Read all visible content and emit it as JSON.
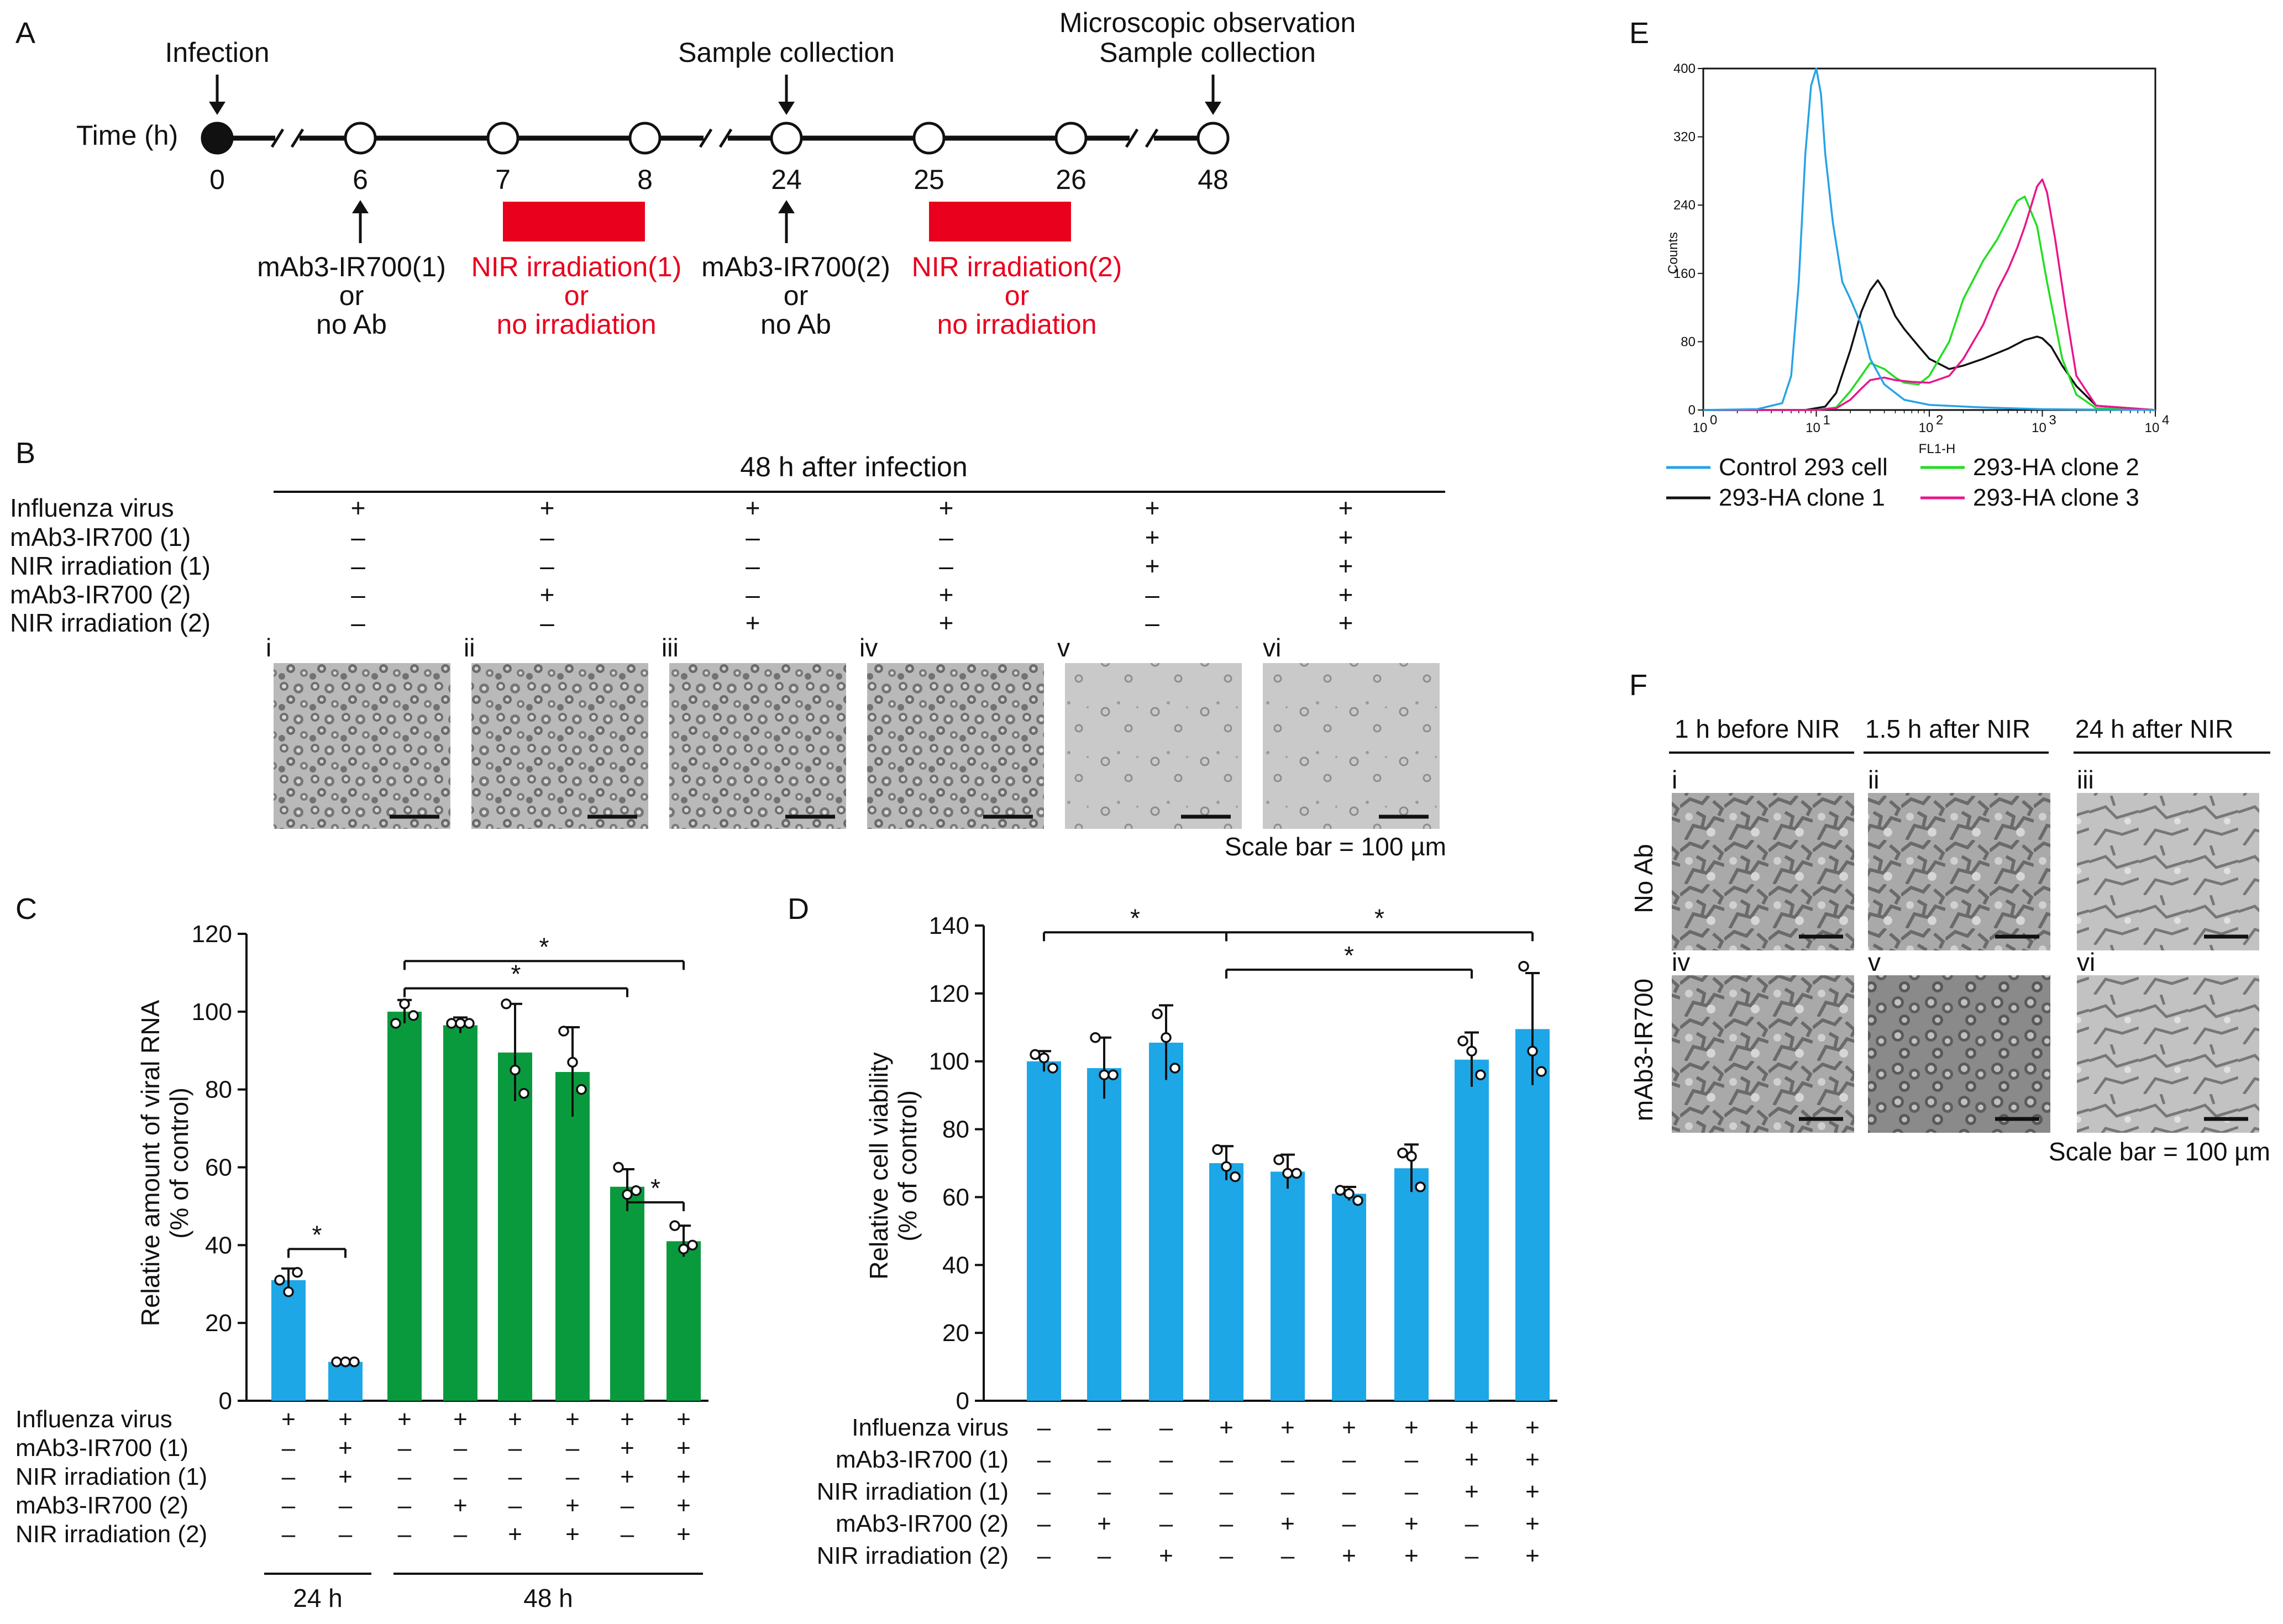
{
  "panels": {
    "a": "A",
    "b": "B",
    "c": "C",
    "d": "D",
    "e": "E",
    "f": "F"
  },
  "colors": {
    "blue": "#1ea7e6",
    "green": "#0a9a3e",
    "red": "#e8001d",
    "pink": "#e8168b",
    "histo_green": "#22dd22",
    "histo_blue": "#26a3e6",
    "black": "#111111"
  },
  "timeline": {
    "axis_label": "Time (h)",
    "ticks": [
      "0",
      "6",
      "7",
      "8",
      "24",
      "25",
      "26",
      "48"
    ],
    "above": {
      "infection": "Infection",
      "sample": "Sample collection",
      "micro_1": "Microscopic observation",
      "micro_2": "Sample collection"
    },
    "below": {
      "ab1": [
        "mAb3-IR700(1)",
        "or",
        "no Ab"
      ],
      "nir1": [
        "NIR irradiation(1)",
        "or",
        "no irradiation"
      ],
      "ab2": [
        "mAb3-IR700(2)",
        "or",
        "no Ab"
      ],
      "nir2": [
        "NIR irradiation(2)",
        "or",
        "no irradiation"
      ]
    }
  },
  "panel_b": {
    "title": "48 h after infection",
    "row_labels": [
      "Influenza virus",
      "mAb3-IR700 (1)",
      "NIR irradiation (1)",
      "mAb3-IR700 (2)",
      "NIR irradiation (2)"
    ],
    "columns": [
      [
        "+",
        "–",
        "–",
        "–",
        "–"
      ],
      [
        "+",
        "–",
        "–",
        "+",
        "–"
      ],
      [
        "+",
        "–",
        "–",
        "–",
        "+"
      ],
      [
        "+",
        "–",
        "–",
        "+",
        "+"
      ],
      [
        "+",
        "+",
        "+",
        "–",
        "–"
      ],
      [
        "+",
        "+",
        "+",
        "+",
        "+"
      ]
    ],
    "image_labels": [
      "i",
      "ii",
      "iii",
      "iv",
      "v",
      "vi"
    ],
    "scale_bar": "Scale bar = 100 µm"
  },
  "chart_data": [
    {
      "panel": "C",
      "type": "bar",
      "ylabel": "Relative amount of viral RNA",
      "ylabel2": "(% of control)",
      "ylim": [
        0,
        120
      ],
      "yticks": [
        0,
        20,
        40,
        60,
        80,
        100,
        120
      ],
      "values": [
        31,
        10,
        100,
        96.5,
        89.5,
        84.5,
        55,
        41
      ],
      "errors": [
        3,
        0.5,
        3,
        2,
        12.5,
        11.5,
        4.5,
        4
      ],
      "points": [
        [
          31,
          28,
          33
        ],
        [
          10,
          10,
          10
        ],
        [
          97,
          102,
          99
        ],
        [
          97,
          97,
          97
        ],
        [
          102,
          85,
          79
        ],
        [
          95,
          87,
          80
        ],
        [
          60,
          53,
          54
        ],
        [
          45,
          39,
          40
        ]
      ],
      "colors": [
        "blue",
        "blue",
        "green",
        "green",
        "green",
        "green",
        "green",
        "green"
      ],
      "row_labels": [
        "Influenza virus",
        "mAb3-IR700 (1)",
        "NIR irradiation (1)",
        "mAb3-IR700 (2)",
        "NIR irradiation (2)"
      ],
      "signs": [
        [
          "+",
          "–",
          "–",
          "–",
          "–"
        ],
        [
          "+",
          "+",
          "+",
          "–",
          "–"
        ],
        [
          "+",
          "–",
          "–",
          "–",
          "–"
        ],
        [
          "+",
          "–",
          "–",
          "+",
          "–"
        ],
        [
          "+",
          "–",
          "–",
          "–",
          "+"
        ],
        [
          "+",
          "–",
          "–",
          "+",
          "+"
        ],
        [
          "+",
          "+",
          "+",
          "–",
          "–"
        ],
        [
          "+",
          "+",
          "+",
          "+",
          "+"
        ]
      ],
      "groups": [
        "24 h",
        "48 h"
      ],
      "significance": [
        {
          "from": 0,
          "to": 1,
          "y": 39,
          "label": "*"
        },
        {
          "from": 2,
          "to": 7,
          "y": 113,
          "label": "*"
        },
        {
          "from": 2,
          "to": 6,
          "y": 106,
          "label": "*"
        },
        {
          "from": 6,
          "to": 7,
          "y": 51,
          "label": "*"
        }
      ]
    },
    {
      "panel": "D",
      "type": "bar",
      "ylabel": "Relative cell viability",
      "ylabel2": "(% of control)",
      "ylim": [
        0,
        140
      ],
      "yticks": [
        0,
        20,
        40,
        60,
        80,
        100,
        120,
        140
      ],
      "values": [
        100,
        98,
        105.5,
        70,
        67.5,
        61,
        68.5,
        100.5,
        109.5
      ],
      "errors": [
        3,
        9,
        11,
        5,
        5,
        2,
        7,
        8,
        16.5
      ],
      "points": [
        [
          102,
          101,
          98
        ],
        [
          107,
          96,
          96
        ],
        [
          114,
          107,
          98
        ],
        [
          74,
          69,
          66
        ],
        [
          71,
          67,
          67
        ],
        [
          62,
          61,
          59
        ],
        [
          73,
          72,
          63
        ],
        [
          106,
          103,
          96
        ],
        [
          128,
          103,
          97
        ]
      ],
      "colors": [
        "blue",
        "blue",
        "blue",
        "blue",
        "blue",
        "blue",
        "blue",
        "blue",
        "blue"
      ],
      "row_labels": [
        "Influenza virus",
        "mAb3-IR700 (1)",
        "NIR irradiation (1)",
        "mAb3-IR700 (2)",
        "NIR irradiation (2)"
      ],
      "signs": [
        [
          "–",
          "–",
          "–",
          "–",
          "–"
        ],
        [
          "–",
          "–",
          "–",
          "+",
          "–"
        ],
        [
          "–",
          "–",
          "–",
          "–",
          "+"
        ],
        [
          "+",
          "–",
          "–",
          "–",
          "–"
        ],
        [
          "+",
          "–",
          "–",
          "+",
          "–"
        ],
        [
          "+",
          "–",
          "–",
          "–",
          "+"
        ],
        [
          "+",
          "–",
          "–",
          "+",
          "+"
        ],
        [
          "+",
          "+",
          "+",
          "–",
          "–"
        ],
        [
          "+",
          "+",
          "+",
          "+",
          "+"
        ]
      ],
      "significance": [
        {
          "from": 0,
          "to": 3,
          "y": 138,
          "label": "*"
        },
        {
          "from": 3,
          "to": 8,
          "y": 138,
          "label": "*"
        },
        {
          "from": 3,
          "to": 7,
          "y": 127,
          "label": "*"
        }
      ]
    },
    {
      "panel": "E",
      "type": "line",
      "xlabel": "FL1-H",
      "ylabel": "Counts",
      "xscale": "log",
      "xlim": [
        1,
        10000
      ],
      "ylim": [
        0,
        400
      ],
      "yticks": [
        "0",
        "80",
        "160",
        "240",
        "320",
        "400"
      ],
      "xtick_labels": [
        "10",
        "10",
        "10",
        "10",
        "10"
      ],
      "xtick_exps": [
        "0",
        "1",
        "2",
        "3",
        "4"
      ],
      "legend_placement": "bottom",
      "series": [
        {
          "name": "Control 293 cell",
          "color": "histo_blue",
          "x": [
            1,
            3,
            5,
            6,
            7,
            8,
            9,
            10,
            11,
            12,
            14,
            17,
            20,
            25,
            30,
            40,
            60,
            100,
            300,
            1000,
            10000
          ],
          "y": [
            0,
            1,
            8,
            40,
            150,
            300,
            380,
            400,
            370,
            300,
            220,
            150,
            130,
            100,
            60,
            30,
            12,
            6,
            3,
            1,
            0
          ]
        },
        {
          "name": "293-HA clone 1",
          "color": "black",
          "x": [
            1,
            8,
            12,
            15,
            20,
            25,
            30,
            35,
            40,
            50,
            60,
            80,
            100,
            150,
            200,
            300,
            500,
            700,
            900,
            1000,
            1200,
            1500,
            2000,
            3000,
            10000
          ],
          "y": [
            0,
            0,
            4,
            20,
            70,
            115,
            140,
            152,
            140,
            110,
            95,
            75,
            60,
            48,
            52,
            60,
            72,
            82,
            86,
            84,
            74,
            52,
            28,
            5,
            0
          ]
        },
        {
          "name": "293-HA clone 2",
          "color": "histo_green",
          "x": [
            1,
            10,
            15,
            20,
            25,
            30,
            40,
            50,
            60,
            80,
            100,
            150,
            200,
            300,
            400,
            500,
            600,
            700,
            900,
            1100,
            1500,
            2000,
            3000,
            10000
          ],
          "y": [
            0,
            0,
            3,
            22,
            40,
            55,
            48,
            38,
            32,
            30,
            40,
            80,
            130,
            175,
            200,
            225,
            245,
            250,
            215,
            150,
            60,
            18,
            2,
            0
          ]
        },
        {
          "name": "293-HA clone 3",
          "color": "pink",
          "x": [
            1,
            10,
            15,
            20,
            25,
            30,
            40,
            50,
            70,
            100,
            150,
            200,
            300,
            400,
            500,
            600,
            700,
            800,
            900,
            1000,
            1100,
            1300,
            1600,
            2000,
            3000,
            10000
          ],
          "y": [
            0,
            0,
            2,
            12,
            25,
            35,
            38,
            35,
            33,
            32,
            40,
            60,
            100,
            140,
            165,
            190,
            215,
            240,
            262,
            270,
            255,
            200,
            120,
            40,
            5,
            0
          ]
        }
      ]
    }
  ],
  "panel_f": {
    "headers": [
      "1 h before NIR",
      "1.5 h after NIR",
      "24 h after NIR"
    ],
    "row_labels": [
      "No Ab",
      "mAb3-IR700"
    ],
    "image_labels": [
      "i",
      "ii",
      "iii",
      "iv",
      "v",
      "vi"
    ],
    "scale_bar": "Scale bar = 100 µm"
  }
}
